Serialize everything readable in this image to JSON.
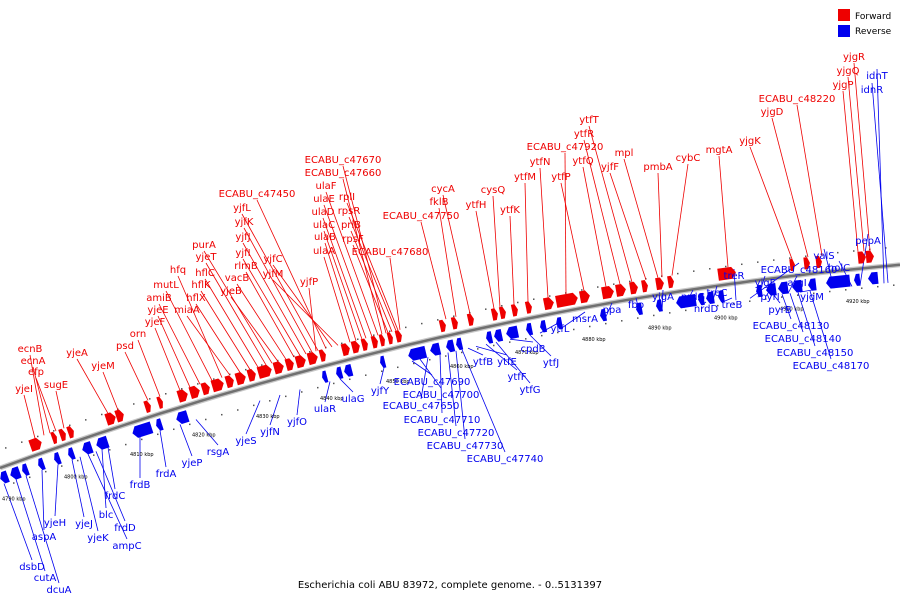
{
  "caption": "Escherichia coli ABU 83972, complete genome. - 0..5131397",
  "legend": [
    {
      "label": "Forward",
      "color": "#ff0000"
    },
    {
      "label": "Reverse",
      "color": "#0000ff"
    }
  ],
  "colors": {
    "forward": "#ee0000",
    "reverse": "#0000ee",
    "backbone": "#808080"
  },
  "ticks": [
    "4790 kbp",
    "4800 kbp",
    "4810 kbp",
    "4820 kbp",
    "4830 kbp",
    "4840 kbp",
    "4850 kbp",
    "4860 kbp",
    "4870 kbp",
    "4880 kbp",
    "4890 kbp",
    "4900 kbp",
    "4910 kbp",
    "4920 kbp"
  ],
  "forward_labels": [
    "yjeI",
    "ecnB",
    "ecnA",
    "efp",
    "sugE",
    "yjeA",
    "yjeM",
    "psd",
    "orn",
    "yjeF",
    "yjeE",
    "amiB",
    "mutL",
    "hfq",
    "miaA",
    "hflX",
    "hflK",
    "hflC",
    "yjeT",
    "purA",
    "yjeB",
    "vacB",
    "rlmB",
    "yjfI",
    "yjfJ",
    "yjfK",
    "yjfL",
    "ECABU_c47450",
    "yjfC",
    "yjfM",
    "yjfP",
    "ulaA",
    "ulaB",
    "ulaC",
    "ulaD",
    "ulaE",
    "ulaF",
    "ECABU_c47660",
    "ECABU_c47670",
    "rpsF",
    "priB",
    "rpsR",
    "rplI",
    "ECABU_c47680",
    "ECABU_c47750",
    "fklB",
    "cycA",
    "ytfH",
    "cysQ",
    "ytfK",
    "ytfM",
    "ytfN",
    "ECABU_c47920",
    "ytfP",
    "ytfQ",
    "ytfR",
    "ytfT",
    "yjfF",
    "mpl",
    "pmbA",
    "cybC",
    "mgtA",
    "yjgK",
    "yjgD",
    "ECABU_c48220",
    "yjgP",
    "yjgQ",
    "yjgR"
  ],
  "reverse_labels": [
    "dsbD",
    "cutA",
    "dcuA",
    "aspA",
    "yjeH",
    "yjeJ",
    "yjeK",
    "ampC",
    "frdD",
    "blc",
    "frdC",
    "frdB",
    "frdA",
    "yjeP",
    "rsgA",
    "yjeS",
    "yjfN",
    "yjfO",
    "ulaR",
    "ulaG",
    "yjfY",
    "ECABU_c47690",
    "ECABU_c47700",
    "ECABU_c47650",
    "ECABU_c47710",
    "ECABU_c47720",
    "ECABU_c47730",
    "ECABU_c47740",
    "ytfB",
    "ytfE",
    "ytfF",
    "ytfG",
    "cpdB",
    "ytfJ",
    "ytfL",
    "msrA",
    "ppa",
    "fbp",
    "yjgA",
    "nrdG",
    "nrdD",
    "treC",
    "treB",
    "treR",
    "ECABU_c48160",
    "yjgF",
    "pyrI",
    "pyrB",
    "argI",
    "yjgM",
    "valS",
    "holC",
    "pepA",
    "ECABU_c48130",
    "ECABU_c48140",
    "ECABU_c48150",
    "ECABU_c48170",
    "idnT",
    "idnR"
  ]
}
